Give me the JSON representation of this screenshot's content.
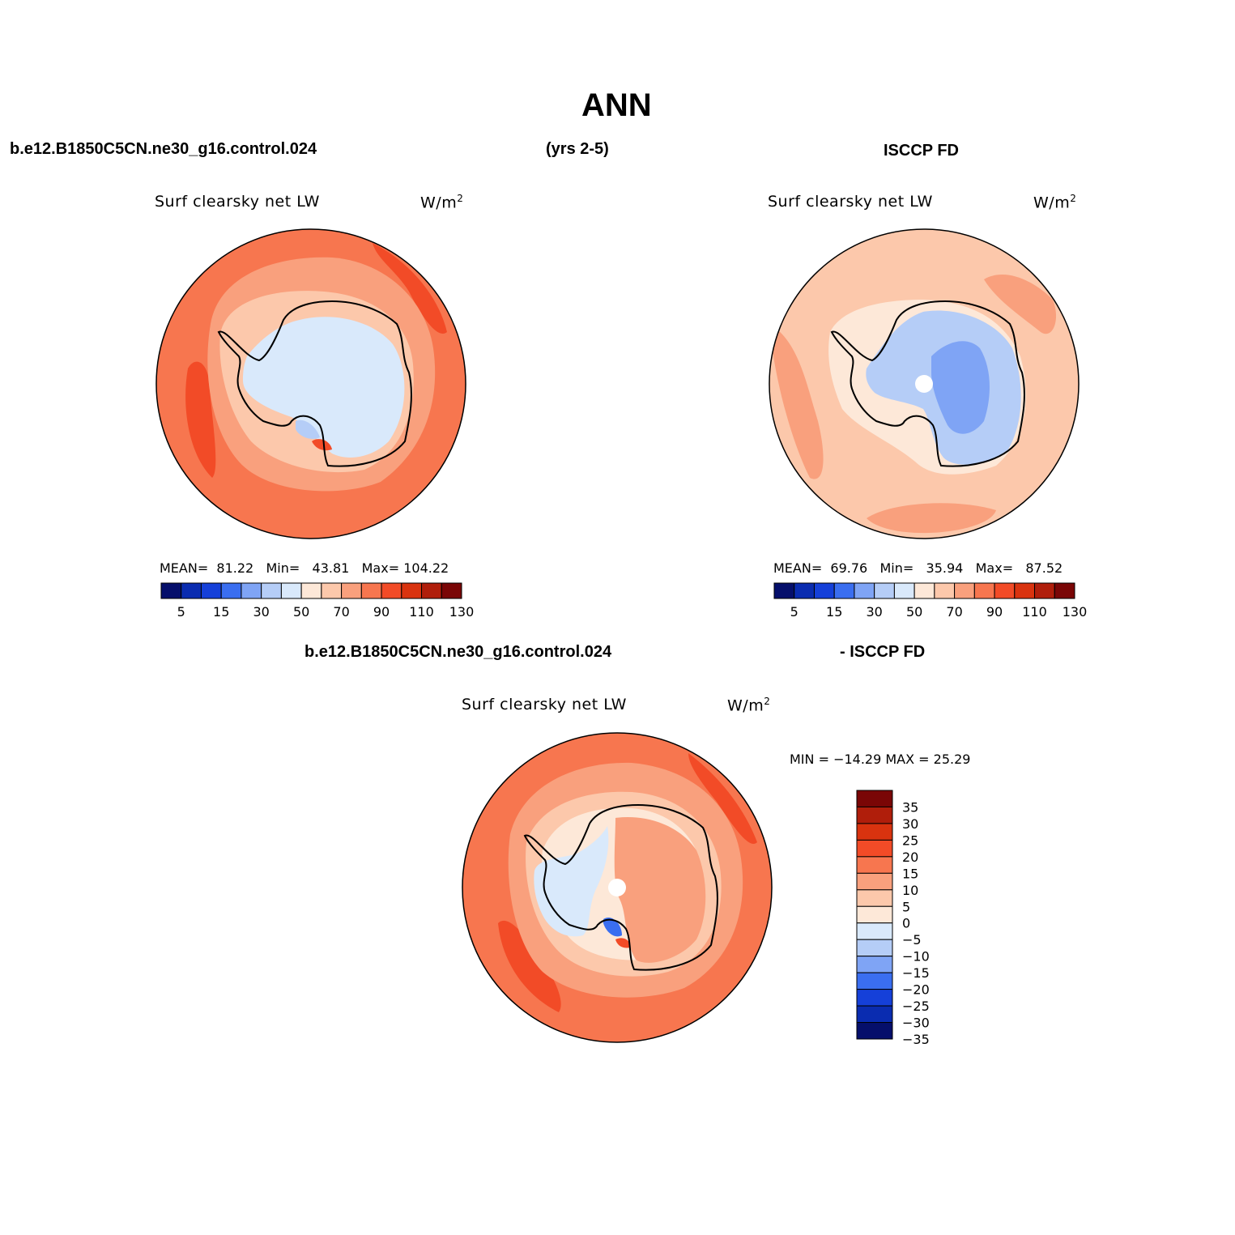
{
  "page": {
    "title": "ANN",
    "case_name": "b.e12.B1850C5CN.ne30_g16.control.024",
    "years": "(yrs 2-5)",
    "obs_name": "ISCCP FD",
    "diff_case_name": "b.e12.B1850C5CN.ne30_g16.control.024",
    "diff_obs_name": "- ISCCP FD"
  },
  "panels": {
    "model": {
      "variable": "Surf  clearsky  net  LW",
      "units": "W/m",
      "units_sup": "2",
      "stats": {
        "mean_label": "MEAN=",
        "mean_value": "81.22",
        "min_label": "Min=",
        "min_value": "43.81",
        "max_label": "Max=",
        "max_value": "104.22"
      }
    },
    "obs": {
      "variable": "Surf  clearsky  net  LW",
      "units": "W/m",
      "units_sup": "2",
      "stats": {
        "mean_label": "MEAN=",
        "mean_value": "69.76",
        "min_label": "Min=",
        "min_value": "35.94",
        "max_label": "Max=",
        "max_value": "87.52"
      }
    },
    "diff": {
      "variable": "Surf  clearsky  net  LW",
      "units": "W/m",
      "units_sup": "2",
      "minmax": "MIN = −14.29  MAX =   25.29"
    }
  },
  "colorbars": {
    "abs": {
      "colors": [
        "#050f6b",
        "#0a2cb0",
        "#1540d9",
        "#3a6ef0",
        "#7fa4f5",
        "#b5cdf7",
        "#d9e9fb",
        "#fde8d8",
        "#fcc8ab",
        "#f9a07d",
        "#f7764f",
        "#f24b27",
        "#d9330f",
        "#b01e0b",
        "#7a0606"
      ],
      "labels": [
        "5",
        "15",
        "30",
        "50",
        "70",
        "90",
        "110",
        "130"
      ]
    },
    "diff": {
      "colors": [
        "#7a0606",
        "#b01e0b",
        "#d9330f",
        "#f24b27",
        "#f7764f",
        "#f9a07d",
        "#fcc8ab",
        "#fde8d8",
        "#d9e9fb",
        "#b5cdf7",
        "#7fa4f5",
        "#3a6ef0",
        "#1540d9",
        "#0a2cb0",
        "#050f6b"
      ],
      "labels": [
        "35",
        "30",
        "25",
        "20",
        "15",
        "10",
        "5",
        "0",
        "−5",
        "−10",
        "−15",
        "−20",
        "−25",
        "−30",
        "−35"
      ]
    }
  },
  "map_colors": {
    "ocean_model_outer": "#f7764f",
    "ocean_model_mid": "#f9a07d",
    "ocean_model_band": "#f24b27",
    "coast_model": "#fcc8ab",
    "land_model": "#d9e9fb",
    "ocean_obs": "#fcc8ab",
    "ocean_obs_band": "#f9a07d",
    "coast_obs": "#fde8d8",
    "land_obs": "#b5cdf7",
    "land_obs_core": "#7fa4f5",
    "ocean_diff_outer": "#f7764f",
    "ocean_diff_mid": "#f9a07d",
    "ocean_diff_band": "#f24b27",
    "diff_ring": "#fcc8ab",
    "diff_inner": "#fde8d8",
    "diff_land_west": "#d9e9fb",
    "diff_land_east": "#f9a07d"
  }
}
